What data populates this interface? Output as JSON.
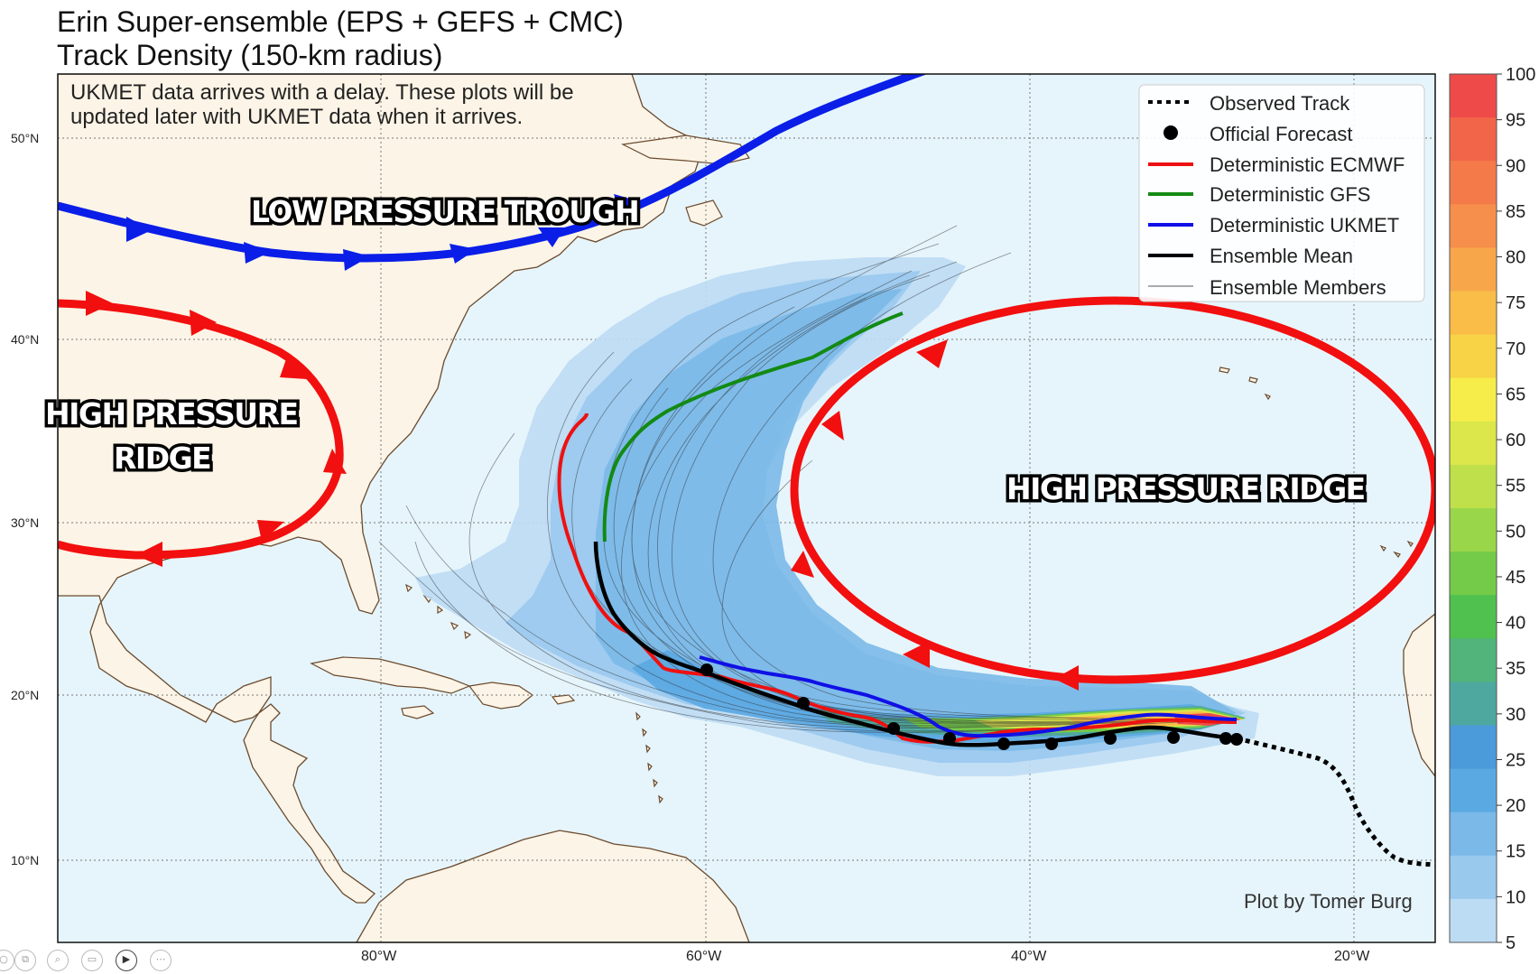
{
  "title_line1": "Erin Super-ensemble (EPS + GEFS + CMC)",
  "title_line2": "Track Density (150-km radius)",
  "note_line1": "UKMET data arrives with a delay. These plots will be",
  "note_line2": "updated later with UKMET data when it arrives.",
  "annotations": {
    "trough": "LOW PRESSURE TROUGH",
    "ridge_west_line1": "HIGH PRESSURE",
    "ridge_west_line2": "RIDGE",
    "ridge_east": "HIGH PRESSURE RIDGE"
  },
  "lat_labels": [
    "50°N",
    "40°N",
    "30°N",
    "20°N",
    "10°N"
  ],
  "lon_labels": [
    "80°W",
    "60°W",
    "40°W",
    "20°W"
  ],
  "legend": {
    "observed": "Observed Track",
    "official": "Official Forecast",
    "ecmwf": "Deterministic ECMWF",
    "gfs": "Deterministic GFS",
    "ukmet": "Deterministic UKMET",
    "mean": "Ensemble Mean",
    "members": "Ensemble Members"
  },
  "colorbar": {
    "ticks": [
      "100",
      "95",
      "90",
      "85",
      "80",
      "75",
      "70",
      "65",
      "60",
      "55",
      "50",
      "45",
      "40",
      "35",
      "30",
      "25",
      "20",
      "15",
      "10",
      "5"
    ],
    "colors": [
      "#ef4a4a",
      "#f26548",
      "#f47a4a",
      "#f68f4b",
      "#f8a64a",
      "#f9bd48",
      "#f8d346",
      "#f6ed4a",
      "#dbe74a",
      "#bfe04a",
      "#9ad64a",
      "#74cb4a",
      "#50c04e",
      "#52b47a",
      "#4ea89f",
      "#4b9ad9",
      "#5ba9e2",
      "#7ab9e8",
      "#9ac9ee",
      "#bcdcf4"
    ]
  },
  "credit": "Plot by Tomer Burg",
  "colors": {
    "ocean": "#e6f5fb",
    "land": "#fcf4e6",
    "coast": "#6b4a2e",
    "ecmwf": "#ee1111",
    "gfs": "#138a13",
    "ukmet": "#1010e6",
    "mean": "#000000",
    "trough": "#0a1ee8",
    "ridge": "#f20f0f"
  }
}
